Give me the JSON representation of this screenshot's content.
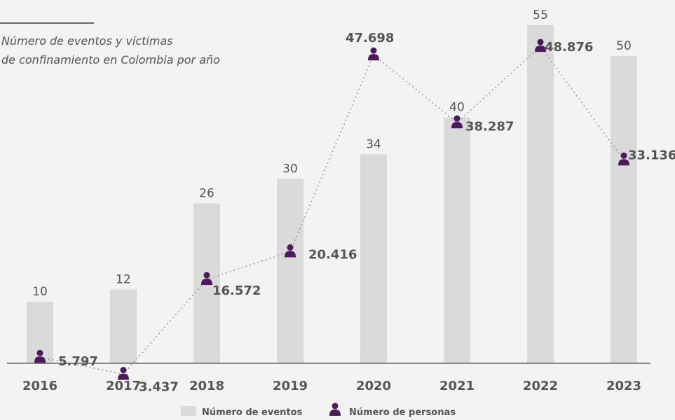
{
  "chart_data": {
    "type": "bar",
    "title": "Número de eventos y víctimas",
    "subtitle": "de confinamiento en Colombia por año",
    "categories": [
      "2016",
      "2017",
      "2018",
      "2019",
      "2020",
      "2021",
      "2022",
      "2023"
    ],
    "series": [
      {
        "name": "Número de eventos",
        "type": "bar",
        "values": [
          10,
          12,
          26,
          30,
          34,
          40,
          55,
          50
        ],
        "labels": [
          "10",
          "12",
          "26",
          "30",
          "34",
          "40",
          "55",
          "50"
        ],
        "color": "#dadada"
      },
      {
        "name": "Número de personas",
        "type": "line",
        "values": [
          5797,
          3437,
          16572,
          20416,
          47698,
          38287,
          48876,
          33136
        ],
        "labels": [
          "5.797",
          "3.437",
          "16.572",
          "20.416",
          "47.698",
          "38.287",
          "48.876",
          "33.136"
        ],
        "color": "#4a1a5c",
        "line_style": "dotted"
      }
    ],
    "grid": false,
    "legend_position": "bottom-center",
    "colors": {
      "text": "#555555",
      "axis": "#666666",
      "connector": "#999999"
    }
  }
}
